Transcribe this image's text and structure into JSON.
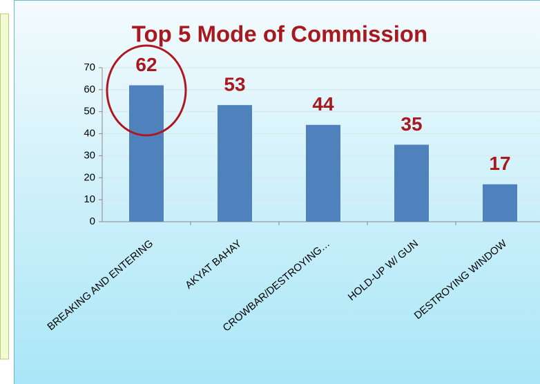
{
  "chart_data": {
    "type": "bar",
    "title": "Top 5  Mode of Commission",
    "categories": [
      "BREAKING AND ENTERING",
      "AKYAT BAHAY",
      "CROWBAR/DESTROYING…",
      "HOLD-UP W/ GUN",
      "DESTROYING WINDOW"
    ],
    "values": [
      62,
      53,
      44,
      35,
      17
    ],
    "color": "#4f81bd",
    "ylim": [
      0,
      70
    ],
    "yticks": [
      0,
      10,
      20,
      30,
      40,
      50,
      60,
      70
    ],
    "grid": true
  }
}
